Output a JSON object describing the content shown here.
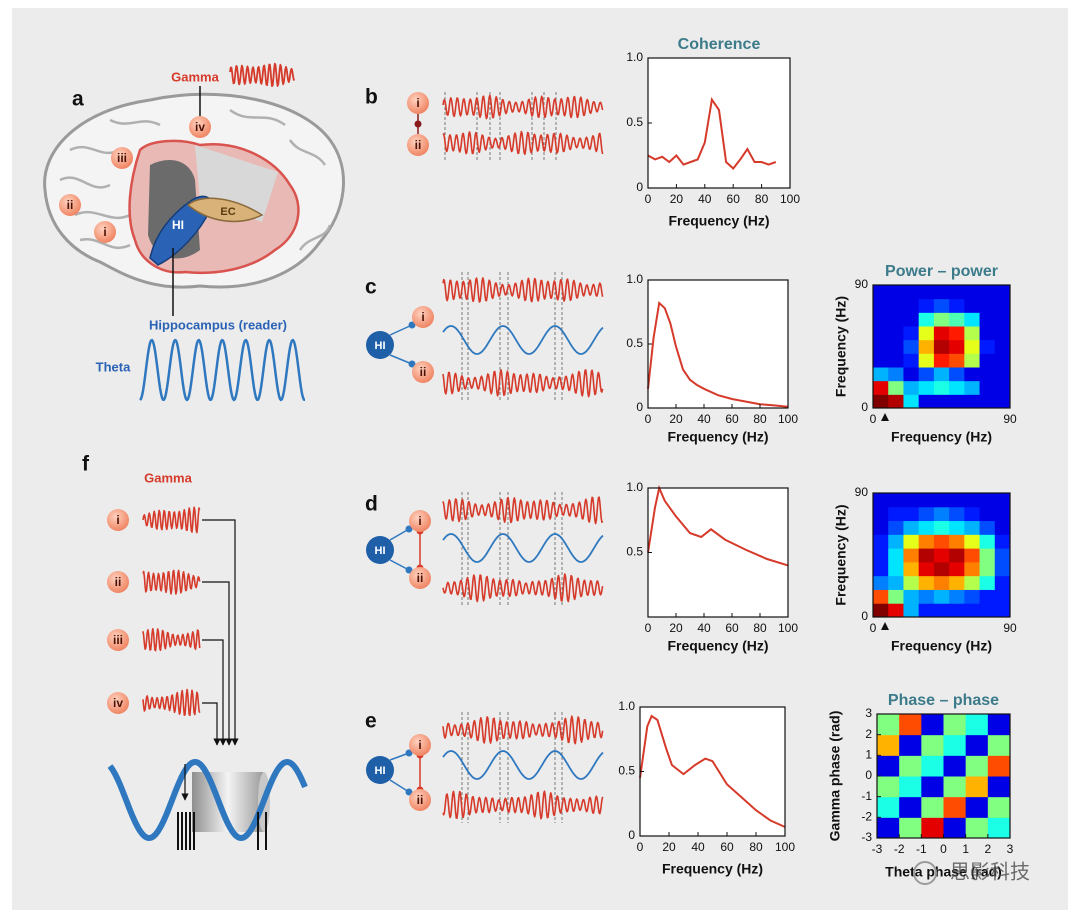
{
  "figure": {
    "panel_labels": [
      "a",
      "b",
      "c",
      "d",
      "e",
      "f"
    ],
    "brain": {
      "gamma_label": "Gamma",
      "region_labels": [
        "i",
        "ii",
        "iii",
        "iv"
      ],
      "hippocampus_abbr": "HI",
      "ec_abbr": "EC",
      "hippocampus_label": "Hippocampus (reader)",
      "theta_label": "Theta"
    },
    "f_gamma_label": "Gamma",
    "watermark": "思影科技"
  },
  "chart_data": [
    {
      "type": "line",
      "title": "Coherence",
      "x_label": "Frequency (Hz)",
      "color": "#d63a2a",
      "x": [
        0,
        5,
        10,
        15,
        20,
        25,
        30,
        35,
        40,
        45,
        50,
        55,
        60,
        65,
        70,
        75,
        80,
        85,
        90
      ],
      "values": [
        0.25,
        0.22,
        0.24,
        0.2,
        0.25,
        0.18,
        0.2,
        0.22,
        0.35,
        0.68,
        0.6,
        0.2,
        0.15,
        0.22,
        0.3,
        0.2,
        0.2,
        0.18,
        0.2
      ],
      "xlim": [
        0,
        100
      ],
      "ylim": [
        0,
        1
      ],
      "xticks": [
        0,
        20,
        40,
        60,
        80,
        100
      ],
      "yticks": [
        0,
        0.5,
        {
          "value": 1,
          "label": "1.0"
        }
      ]
    },
    {
      "type": "line",
      "x_label": "Frequency (Hz)",
      "color": "#d63a2a",
      "x": [
        0,
        4,
        8,
        12,
        16,
        20,
        25,
        30,
        35,
        40,
        50,
        60,
        70,
        80,
        90,
        100
      ],
      "values": [
        0.15,
        0.55,
        0.82,
        0.78,
        0.66,
        0.48,
        0.3,
        0.22,
        0.18,
        0.15,
        0.1,
        0.07,
        0.05,
        0.03,
        0.02,
        0.01
      ],
      "xlim": [
        0,
        100
      ],
      "ylim": [
        0,
        1
      ],
      "xticks": [
        0,
        20,
        40,
        60,
        80,
        100
      ],
      "yticks": [
        0,
        0.5,
        {
          "value": 1,
          "label": "1.0"
        }
      ]
    },
    {
      "type": "line",
      "x_label": "Frequency (Hz)",
      "color": "#d63a2a",
      "x": [
        0,
        5,
        8,
        12,
        20,
        30,
        38,
        45,
        55,
        70,
        85,
        100
      ],
      "values": [
        0.5,
        0.85,
        1.0,
        0.9,
        0.78,
        0.65,
        0.62,
        0.68,
        0.6,
        0.52,
        0.45,
        0.4
      ],
      "xlim": [
        0,
        100
      ],
      "ylim": [
        0,
        1
      ],
      "xticks": [
        0,
        20,
        40,
        60,
        80,
        100
      ],
      "yticks": [
        0.5,
        {
          "value": 1,
          "label": "1.0"
        }
      ]
    },
    {
      "type": "line",
      "x_label": "Frequency (Hz)",
      "color": "#d63a2a",
      "x": [
        0,
        5,
        8,
        12,
        18,
        22,
        30,
        38,
        45,
        50,
        60,
        70,
        80,
        90,
        100
      ],
      "values": [
        0.45,
        0.85,
        0.93,
        0.9,
        0.68,
        0.55,
        0.48,
        0.55,
        0.6,
        0.58,
        0.4,
        0.3,
        0.2,
        0.12,
        0.07
      ],
      "xlim": [
        0,
        100
      ],
      "ylim": [
        0,
        1
      ],
      "xticks": [
        0,
        20,
        40,
        60,
        80,
        100
      ],
      "yticks": [
        0,
        0.5,
        {
          "value": 1,
          "label": "1.0"
        }
      ]
    },
    {
      "type": "heatmap",
      "title": "Power – power",
      "x_label": "Frequency (Hz)",
      "y_label": "Frequency (Hz)",
      "colormap": "jet",
      "xlim": [
        0,
        90
      ],
      "ylim": [
        0,
        90
      ],
      "xticks": [
        0,
        90
      ],
      "yticks": [
        0,
        90
      ],
      "z": [
        [
          1.0,
          0.95,
          0.35,
          0.1,
          0.1,
          0.1,
          0.1,
          0.1,
          0.1
        ],
        [
          0.9,
          0.5,
          0.3,
          0.35,
          0.4,
          0.35,
          0.3,
          0.1,
          0.1
        ],
        [
          0.3,
          0.25,
          0.1,
          0.2,
          0.3,
          0.2,
          0.1,
          0.1,
          0.1
        ],
        [
          0.1,
          0.1,
          0.15,
          0.6,
          0.85,
          0.8,
          0.55,
          0.1,
          0.1
        ],
        [
          0.1,
          0.1,
          0.2,
          0.7,
          0.95,
          0.9,
          0.6,
          0.15,
          0.1
        ],
        [
          0.1,
          0.1,
          0.15,
          0.6,
          0.9,
          0.85,
          0.55,
          0.1,
          0.1
        ],
        [
          0.1,
          0.1,
          0.1,
          0.4,
          0.5,
          0.45,
          0.35,
          0.1,
          0.1
        ],
        [
          0.1,
          0.1,
          0.1,
          0.15,
          0.2,
          0.15,
          0.1,
          0.1,
          0.1
        ],
        [
          0.1,
          0.1,
          0.1,
          0.1,
          0.1,
          0.1,
          0.1,
          0.1,
          0.1
        ]
      ]
    },
    {
      "type": "heatmap",
      "x_label": "Frequency (Hz)",
      "y_label": "Frequency (Hz)",
      "colormap": "jet",
      "xlim": [
        0,
        90
      ],
      "ylim": [
        0,
        90
      ],
      "xticks": [
        0,
        90
      ],
      "yticks": [
        0,
        90
      ],
      "z": [
        [
          1.0,
          0.9,
          0.3,
          0.15,
          0.15,
          0.15,
          0.15,
          0.15,
          0.15
        ],
        [
          0.8,
          0.5,
          0.3,
          0.25,
          0.3,
          0.25,
          0.2,
          0.15,
          0.15
        ],
        [
          0.25,
          0.3,
          0.55,
          0.7,
          0.75,
          0.7,
          0.55,
          0.4,
          0.15
        ],
        [
          0.15,
          0.35,
          0.7,
          0.9,
          0.95,
          0.9,
          0.75,
          0.5,
          0.2
        ],
        [
          0.15,
          0.35,
          0.75,
          0.95,
          0.9,
          0.95,
          0.8,
          0.5,
          0.2
        ],
        [
          0.15,
          0.3,
          0.6,
          0.75,
          0.8,
          0.75,
          0.6,
          0.4,
          0.15
        ],
        [
          0.1,
          0.2,
          0.3,
          0.35,
          0.4,
          0.35,
          0.3,
          0.2,
          0.1
        ],
        [
          0.1,
          0.15,
          0.15,
          0.2,
          0.25,
          0.2,
          0.15,
          0.1,
          0.1
        ],
        [
          0.1,
          0.1,
          0.1,
          0.1,
          0.1,
          0.1,
          0.1,
          0.1,
          0.1
        ]
      ]
    },
    {
      "type": "heatmap",
      "title": "Phase – phase",
      "x_label": "Theta phase (rad)",
      "y_label": "Gamma phase (rad)",
      "colormap": "jet",
      "xlim": [
        -3,
        3
      ],
      "ylim": [
        -3,
        3
      ],
      "xticks": [
        -3,
        -2,
        -1,
        0,
        1,
        2,
        3
      ],
      "yticks": [
        -3,
        -2,
        -1,
        0,
        1,
        2,
        3
      ],
      "z": [
        [
          0.1,
          0.5,
          0.9,
          0.1,
          0.5,
          0.4
        ],
        [
          0.4,
          0.1,
          0.5,
          0.8,
          0.1,
          0.5
        ],
        [
          0.5,
          0.4,
          0.1,
          0.5,
          0.7,
          0.1
        ],
        [
          0.1,
          0.5,
          0.4,
          0.1,
          0.5,
          0.8
        ],
        [
          0.7,
          0.1,
          0.5,
          0.4,
          0.1,
          0.5
        ],
        [
          0.5,
          0.8,
          0.1,
          0.5,
          0.4,
          0.1
        ]
      ]
    }
  ]
}
